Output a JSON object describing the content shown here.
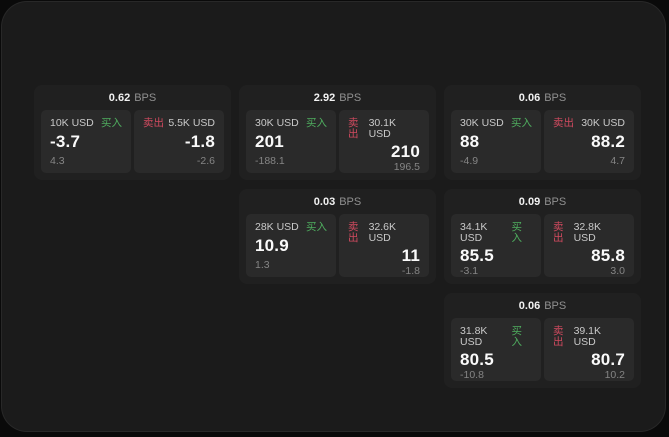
{
  "theme": {
    "page_bg": "#0a0a0a",
    "panel_bg": "#1b1b1b",
    "card_bg": "#202020",
    "subpanel_bg": "#2a2a2a",
    "buy_color": "#4fae5f",
    "sell_color": "#d04a5f"
  },
  "labels": {
    "bps_unit": "BPS",
    "buy": "买入",
    "sell": "卖出"
  },
  "cards": [
    {
      "row": 1,
      "col": 1,
      "bps": "0.62",
      "buy": {
        "amount": "10K USD",
        "price": "-3.7",
        "change": "4.3"
      },
      "sell": {
        "amount": "5.5K USD",
        "price": "-1.8",
        "change": "-2.6"
      }
    },
    {
      "row": 1,
      "col": 2,
      "bps": "2.92",
      "buy": {
        "amount": "30K USD",
        "price": "201",
        "change": "-188.1"
      },
      "sell": {
        "amount": "30.1K USD",
        "price": "210",
        "change": "196.5"
      }
    },
    {
      "row": 1,
      "col": 3,
      "bps": "0.06",
      "buy": {
        "amount": "30K USD",
        "price": "88",
        "change": "-4.9"
      },
      "sell": {
        "amount": "30K USD",
        "price": "88.2",
        "change": "4.7"
      }
    },
    {
      "row": 2,
      "col": 2,
      "bps": "0.03",
      "buy": {
        "amount": "28K USD",
        "price": "10.9",
        "change": "1.3"
      },
      "sell": {
        "amount": "32.6K USD",
        "price": "11",
        "change": "-1.8"
      }
    },
    {
      "row": 2,
      "col": 3,
      "bps": "0.09",
      "buy": {
        "amount": "34.1K USD",
        "price": "85.5",
        "change": "-3.1"
      },
      "sell": {
        "amount": "32.8K USD",
        "price": "85.8",
        "change": "3.0"
      }
    },
    {
      "row": 3,
      "col": 3,
      "bps": "0.06",
      "buy": {
        "amount": "31.8K USD",
        "price": "80.5",
        "change": "-10.8"
      },
      "sell": {
        "amount": "39.1K USD",
        "price": "80.7",
        "change": "10.2"
      }
    }
  ]
}
